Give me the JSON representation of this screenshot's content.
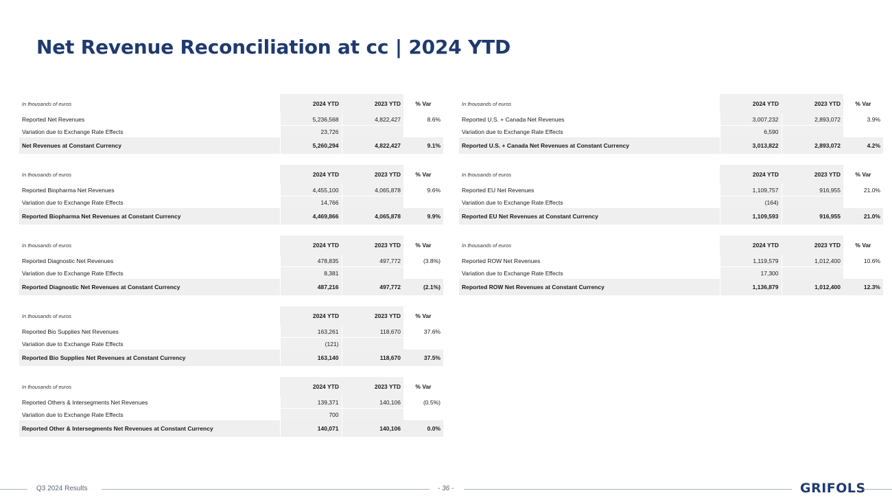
{
  "title": "Net Revenue Reconciliation at cc | 2024 YTD",
  "left_tables": [
    {
      "header": {
        "unit": "In thousands of euros",
        "col1": "2024 YTD",
        "col2": "2023 YTD",
        "col3": "% Var"
      },
      "rows": [
        {
          "label": "Reported Net Revenues",
          "v1": "5,236,568",
          "v2": "4,822,427",
          "v3": "8.6%"
        },
        {
          "label": "Variation due to Exchange Rate Effects",
          "v1": "23,726",
          "v2": "",
          "v3": ""
        }
      ],
      "total": {
        "label": "Net Revenues at Constant Currency",
        "v1": "5,260,294",
        "v2": "4,822,427",
        "v3": "9.1%"
      }
    },
    {
      "header": {
        "unit": "In thousands of euros",
        "col1": "2024 YTD",
        "col2": "2023 YTD",
        "col3": "% Var"
      },
      "rows": [
        {
          "label": "Reported Biopharma Net Revenues",
          "v1": "4,455,100",
          "v2": "4,065,878",
          "v3": "9.6%"
        },
        {
          "label": "Variation due to Exchange Rate Effects",
          "v1": "14,766",
          "v2": "",
          "v3": ""
        }
      ],
      "total": {
        "label": "Reported Biopharma Net Revenues at Constant Currency",
        "v1": "4,469,866",
        "v2": "4,065,878",
        "v3": "9.9%"
      }
    },
    {
      "header": {
        "unit": "In thousands of euros",
        "col1": "2024 YTD",
        "col2": "2023 YTD",
        "col3": "% Var"
      },
      "rows": [
        {
          "label": "Reported Diagnostic Net Revenues",
          "v1": "478,835",
          "v2": "497,772",
          "v3": "(3.8%)"
        },
        {
          "label": "Variation due to Exchange Rate Effects",
          "v1": "8,381",
          "v2": "",
          "v3": ""
        }
      ],
      "total": {
        "label": "Reported Diagnostic Net Revenues at Constant Currency",
        "v1": "487,216",
        "v2": "497,772",
        "v3": "(2.1%)"
      }
    },
    {
      "header": {
        "unit": "In thousands of euros",
        "col1": "2024 YTD",
        "col2": "2023 YTD",
        "col3": "% Var"
      },
      "rows": [
        {
          "label": "Reported Bio Supplies Net Revenues",
          "v1": "163,261",
          "v2": "118,670",
          "v3": "37.6%"
        },
        {
          "label": "Variation due to Exchange Rate Effects",
          "v1": "(121)",
          "v2": "",
          "v3": ""
        }
      ],
      "total": {
        "label": "Reported Bio Supplies Net Revenues at Constant Currency",
        "v1": "163,140",
        "v2": "118,670",
        "v3": "37.5%"
      }
    },
    {
      "header": {
        "unit": "In thousands of euros",
        "col1": "2024 YTD",
        "col2": "2023 YTD",
        "col3": "% Var"
      },
      "rows": [
        {
          "label": "Reported Others & Intersegments Net Revenues",
          "v1": "139,371",
          "v2": "140,106",
          "v3": "(0.5%)"
        },
        {
          "label": "Variation due to Exchange Rate Effects",
          "v1": "700",
          "v2": "",
          "v3": ""
        }
      ],
      "total": {
        "label": "Reported Other & Intersegments Net Revenues at Constant  Currency",
        "v1": "140,071",
        "v2": "140,106",
        "v3": "0.0%"
      }
    }
  ],
  "right_tables": [
    {
      "header": {
        "unit": "In thousands of euros",
        "col1": "2024 YTD",
        "col2": "2023 YTD",
        "col3": "% Var"
      },
      "rows": [
        {
          "label": "Reported U.S. + Canada Net Revenues",
          "v1": "3,007,232",
          "v2": "2,893,072",
          "v3": "3.9%"
        },
        {
          "label": "Variation due to Exchange Rate Effects",
          "v1": "6,590",
          "v2": "",
          "v3": ""
        }
      ],
      "total": {
        "label": "Reported U.S. + Canada Net Revenues at Constant Currency",
        "v1": "3,013,822",
        "v2": "2,893,072",
        "v3": "4.2%"
      }
    },
    {
      "header": {
        "unit": "In thousands of euros",
        "col1": "2024 YTD",
        "col2": "2023 YTD",
        "col3": "% Var"
      },
      "rows": [
        {
          "label": "Reported EU Net Revenues",
          "v1": "1,109,757",
          "v2": "916,955",
          "v3": "21.0%"
        },
        {
          "label": "Variation due to Exchange Rate Effects",
          "v1": "(164)",
          "v2": "",
          "v3": ""
        }
      ],
      "total": {
        "label": "Reported EU Net Revenues at Constant Currency",
        "v1": "1,109,593",
        "v2": "916,955",
        "v3": "21.0%"
      }
    },
    {
      "header": {
        "unit": "In thousands of euros",
        "col1": "2024 YTD",
        "col2": "2023 YTD",
        "col3": "% Var"
      },
      "rows": [
        {
          "label": "Reported ROW Net Revenues",
          "v1": "1,119,579",
          "v2": "1,012,400",
          "v3": "10.6%"
        },
        {
          "label": "Variation due to Exchange Rate Effects",
          "v1": "17,300",
          "v2": "",
          "v3": ""
        }
      ],
      "total": {
        "label": "Reported ROW Net Revenues at Constant Currency",
        "v1": "1,136,879",
        "v2": "1,012,400",
        "v3": "12.3%"
      }
    }
  ],
  "footer": {
    "left": "Q3 2024 Results",
    "page": "- 36 -",
    "logo": "GRIFOLS"
  }
}
